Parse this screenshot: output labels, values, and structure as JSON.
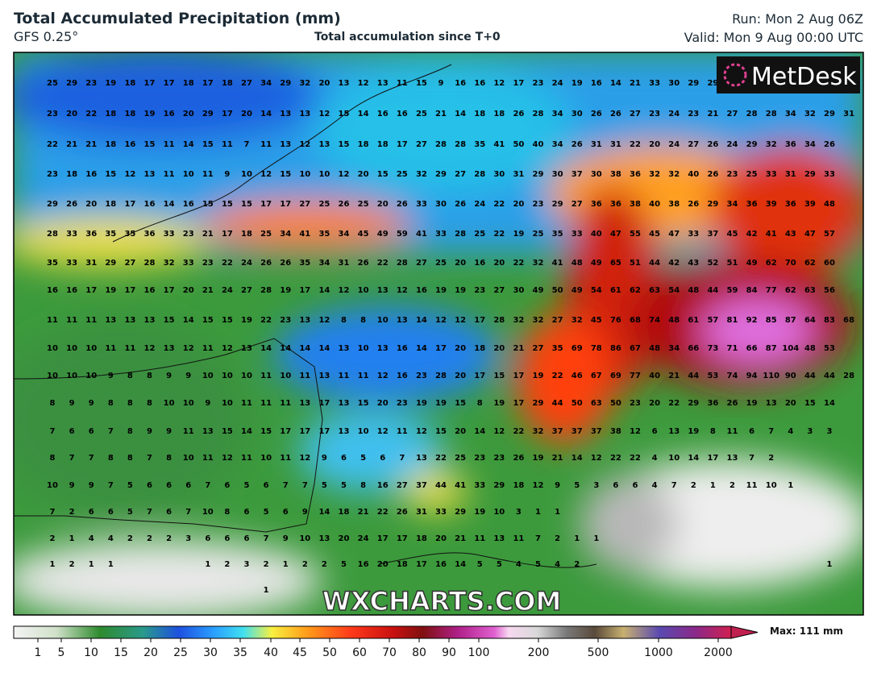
{
  "header": {
    "title": "Total Accumulated Precipitation (mm)",
    "model": "GFS 0.25°",
    "subtitle": "Total accumulation since T+0",
    "run": "Run: Mon 2 Aug 06Z",
    "valid": "Valid: Mon 9 Aug 00:00 UTC"
  },
  "logo": "MetDesk",
  "watermark": "WXCHARTS.COM",
  "grid": [
    [
      25,
      29,
      23,
      19,
      18,
      17,
      17,
      18,
      17,
      18,
      27,
      34,
      29,
      32,
      20,
      13,
      12,
      13,
      11,
      15,
      9,
      16,
      16,
      12,
      17,
      23,
      24,
      19,
      16,
      14,
      21,
      33,
      30,
      29,
      29
    ],
    [
      23,
      20,
      22,
      18,
      18,
      19,
      16,
      20,
      29,
      17,
      20,
      14,
      13,
      13,
      12,
      15,
      14,
      16,
      16,
      25,
      21,
      14,
      18,
      18,
      26,
      28,
      34,
      30,
      26,
      26,
      27,
      23,
      24,
      23,
      21,
      27,
      28,
      28,
      34,
      32,
      29,
      31
    ],
    [
      22,
      21,
      21,
      18,
      16,
      15,
      11,
      14,
      15,
      11,
      7,
      11,
      13,
      12,
      13,
      15,
      18,
      18,
      17,
      27,
      28,
      28,
      35,
      41,
      50,
      40,
      34,
      26,
      31,
      31,
      22,
      20,
      24,
      27,
      26,
      24,
      29,
      32,
      36,
      34,
      26
    ],
    [
      23,
      18,
      16,
      15,
      12,
      13,
      11,
      10,
      11,
      9,
      10,
      12,
      15,
      10,
      10,
      12,
      20,
      15,
      25,
      32,
      29,
      27,
      28,
      30,
      31,
      29,
      30,
      37,
      30,
      38,
      36,
      32,
      32,
      40,
      26,
      23,
      25,
      33,
      31,
      29,
      33
    ],
    [
      29,
      26,
      20,
      18,
      17,
      16,
      14,
      16,
      15,
      15,
      15,
      17,
      17,
      27,
      25,
      26,
      25,
      20,
      26,
      33,
      30,
      26,
      24,
      22,
      20,
      23,
      29,
      27,
      36,
      36,
      38,
      40,
      38,
      26,
      29,
      34,
      36,
      39,
      36,
      39,
      48
    ],
    [
      28,
      33,
      36,
      35,
      35,
      36,
      33,
      23,
      21,
      17,
      18,
      25,
      34,
      41,
      35,
      34,
      45,
      49,
      59,
      41,
      33,
      28,
      25,
      22,
      19,
      25,
      35,
      33,
      40,
      47,
      55,
      45,
      47,
      33,
      37,
      45,
      42,
      41,
      43,
      47,
      57
    ],
    [
      35,
      33,
      31,
      29,
      27,
      28,
      32,
      33,
      23,
      22,
      24,
      26,
      26,
      35,
      34,
      31,
      26,
      22,
      28,
      27,
      25,
      20,
      16,
      20,
      22,
      32,
      41,
      48,
      49,
      65,
      51,
      44,
      42,
      43,
      52,
      51,
      49,
      62,
      70,
      62,
      60
    ],
    [
      16,
      16,
      17,
      19,
      17,
      16,
      17,
      20,
      21,
      24,
      27,
      28,
      19,
      17,
      14,
      12,
      10,
      13,
      12,
      16,
      19,
      19,
      23,
      27,
      30,
      49,
      50,
      49,
      54,
      61,
      62,
      63,
      54,
      48,
      44,
      59,
      84,
      77,
      62,
      63,
      56
    ],
    [
      11,
      11,
      11,
      13,
      13,
      13,
      15,
      14,
      15,
      15,
      19,
      22,
      23,
      13,
      12,
      8,
      8,
      10,
      13,
      14,
      12,
      12,
      17,
      28,
      32,
      32,
      27,
      32,
      45,
      76,
      68,
      74,
      48,
      61,
      57,
      81,
      92,
      85,
      87,
      64,
      83,
      68
    ],
    [
      10,
      10,
      10,
      11,
      11,
      12,
      13,
      12,
      11,
      12,
      13,
      14,
      14,
      14,
      14,
      13,
      10,
      13,
      16,
      14,
      17,
      20,
      18,
      20,
      21,
      27,
      35,
      69,
      78,
      86,
      67,
      48,
      34,
      66,
      73,
      71,
      66,
      87,
      104,
      48,
      53
    ],
    [
      10,
      10,
      10,
      9,
      8,
      8,
      9,
      9,
      10,
      10,
      10,
      11,
      10,
      11,
      13,
      11,
      11,
      12,
      16,
      23,
      28,
      20,
      17,
      15,
      17,
      19,
      22,
      46,
      67,
      69,
      77,
      40,
      21,
      44,
      53,
      74,
      94,
      110,
      90,
      44,
      44,
      28
    ],
    [
      8,
      9,
      9,
      8,
      8,
      8,
      10,
      10,
      9,
      10,
      11,
      11,
      11,
      13,
      17,
      13,
      15,
      20,
      23,
      19,
      19,
      15,
      8,
      19,
      17,
      29,
      44,
      50,
      63,
      50,
      23,
      20,
      22,
      29,
      36,
      26,
      19,
      13,
      20,
      15,
      14
    ],
    [
      7,
      6,
      6,
      7,
      8,
      9,
      9,
      11,
      13,
      15,
      14,
      15,
      17,
      17,
      17,
      13,
      10,
      12,
      11,
      12,
      15,
      20,
      14,
      12,
      22,
      32,
      37,
      37,
      37,
      38,
      12,
      6,
      13,
      19,
      8,
      11,
      6,
      7,
      4,
      3,
      3
    ],
    [
      8,
      7,
      7,
      8,
      8,
      7,
      8,
      10,
      11,
      12,
      11,
      10,
      11,
      12,
      9,
      6,
      5,
      6,
      7,
      13,
      22,
      25,
      23,
      23,
      26,
      19,
      21,
      14,
      12,
      22,
      22,
      4,
      10,
      14,
      17,
      13,
      7,
      2
    ],
    [
      10,
      9,
      9,
      7,
      5,
      6,
      6,
      6,
      7,
      6,
      5,
      6,
      7,
      7,
      5,
      5,
      8,
      16,
      27,
      37,
      44,
      41,
      33,
      29,
      18,
      12,
      9,
      5,
      3,
      6,
      6,
      4,
      7,
      2,
      1,
      2,
      11,
      10,
      1
    ],
    [
      7,
      2,
      6,
      6,
      5,
      7,
      6,
      7,
      10,
      8,
      6,
      5,
      6,
      9,
      14,
      18,
      21,
      22,
      26,
      31,
      33,
      29,
      19,
      10,
      3,
      1,
      1
    ],
    [
      2,
      1,
      4,
      4,
      2,
      2,
      2,
      3,
      6,
      6,
      6,
      7,
      9,
      10,
      13,
      20,
      24,
      17,
      17,
      18,
      20,
      21,
      11,
      13,
      11,
      7,
      2,
      1,
      1
    ],
    [
      1,
      2,
      1,
      1,
      null,
      null,
      null,
      null,
      1,
      2,
      3,
      2,
      1,
      2,
      2,
      5,
      16,
      20,
      18,
      17,
      16,
      14,
      5,
      5,
      4,
      5,
      4,
      2,
      null,
      null,
      null,
      null,
      null,
      null,
      null,
      null,
      null,
      null,
      null,
      null,
      1
    ],
    [
      null,
      null,
      null,
      null,
      null,
      null,
      null,
      null,
      null,
      null,
      null,
      1
    ]
  ],
  "colorbar": {
    "ticks": [
      1,
      5,
      10,
      15,
      20,
      25,
      30,
      35,
      40,
      45,
      50,
      60,
      70,
      80,
      90,
      100,
      200,
      500,
      1000,
      2000
    ],
    "max_label": "Max: 111 mm"
  }
}
